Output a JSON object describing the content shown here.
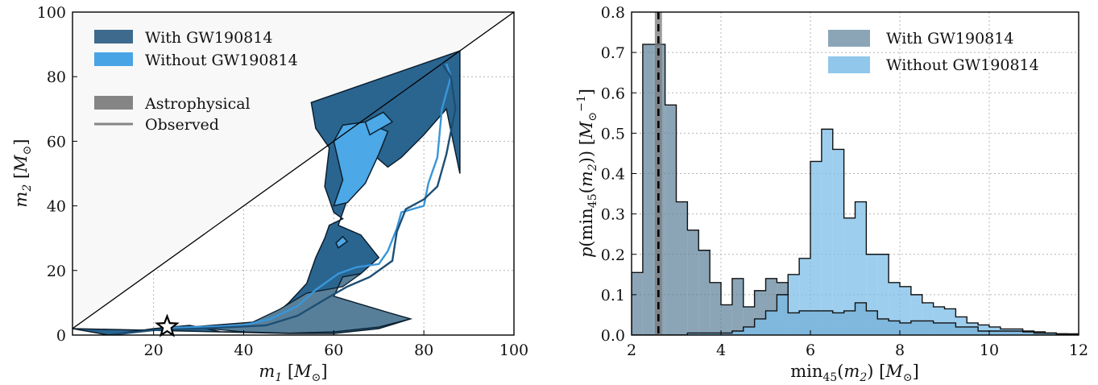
{
  "chart_data": [
    {
      "type": "area",
      "xlabel": "m_1 [M_⊙]",
      "ylabel": "m_2 [M_⊙]",
      "xlim": [
        2,
        100
      ],
      "ylim": [
        0,
        100
      ],
      "xticks": [
        "20",
        "40",
        "60",
        "80",
        "100"
      ],
      "yticks": [
        "0",
        "20",
        "40",
        "60",
        "80",
        "100"
      ],
      "grid": true,
      "legend_position": "top-left",
      "legend": {
        "with": "With GW190814",
        "without": "Without GW190814",
        "astro": "Astrophysical",
        "observed": "Observed"
      },
      "colors": {
        "with": "#225e8c",
        "without": "#3fa0e0",
        "excluded": "#f8f8f8"
      },
      "star_marker": {
        "m1": 23,
        "m2": 2.6
      },
      "series": [
        {
          "name": "With GW190814",
          "style": "filled-astrophysical",
          "polygon": [
            [
              2,
              2
            ],
            [
              10,
              0
            ],
            [
              20,
              2
            ],
            [
              28,
              3
            ],
            [
              35,
              1
            ],
            [
              40,
              1
            ],
            [
              45,
              4
            ],
            [
              50,
              10
            ],
            [
              54,
              16
            ],
            [
              56,
              24
            ],
            [
              58,
              30
            ],
            [
              59,
              34
            ],
            [
              62,
              36
            ],
            [
              60,
              38
            ],
            [
              58,
              46
            ],
            [
              59,
              58
            ],
            [
              56,
              64
            ],
            [
              55,
              72
            ],
            [
              88,
              88
            ],
            [
              88,
              50
            ],
            [
              85,
              70
            ],
            [
              80,
              62
            ],
            [
              75,
              55
            ],
            [
              72,
              52
            ],
            [
              67,
              58
            ],
            [
              64,
              51
            ],
            [
              63,
              42
            ],
            [
              61,
              34
            ],
            [
              66,
              31
            ],
            [
              70,
              24
            ],
            [
              66,
              19
            ],
            [
              62,
              18
            ],
            [
              60,
              12
            ],
            [
              72,
              7
            ],
            [
              77,
              5
            ],
            [
              70,
              2
            ],
            [
              60,
              0.5
            ],
            [
              50,
              0.5
            ]
          ]
        },
        {
          "name": "Without GW190814",
          "style": "filled-astrophysical",
          "polygon": [
            [
              60,
              40
            ],
            [
              62,
              48
            ],
            [
              60,
              60
            ],
            [
              62,
              65
            ],
            [
              67,
              66
            ],
            [
              72,
              63
            ],
            [
              70,
              56
            ],
            [
              67,
              47
            ],
            [
              63,
              41
            ]
          ]
        },
        {
          "name": "Without GW190814",
          "style": "line-observed",
          "polyline": [
            [
              22,
              2.2
            ],
            [
              30,
              2.5
            ],
            [
              40,
              3
            ],
            [
              46,
              5
            ],
            [
              52,
              9
            ],
            [
              56,
              14
            ],
            [
              61,
              19
            ],
            [
              65,
              21
            ],
            [
              70,
              22
            ],
            [
              72,
              26
            ],
            [
              74,
              33
            ],
            [
              75,
              38
            ],
            [
              80,
              40
            ],
            [
              81,
              47
            ],
            [
              83,
              55
            ],
            [
              84,
              70
            ],
            [
              86,
              80
            ],
            [
              85,
              84
            ]
          ]
        },
        {
          "name": "With GW190814",
          "style": "line-observed",
          "polyline": [
            [
              10,
              0
            ],
            [
              20,
              1.5
            ],
            [
              30,
              2
            ],
            [
              38,
              2.5
            ],
            [
              45,
              3
            ],
            [
              52,
              6
            ],
            [
              58,
              11
            ],
            [
              63,
              15
            ],
            [
              68,
              18
            ],
            [
              73,
              23
            ],
            [
              74,
              32
            ],
            [
              76,
              39
            ],
            [
              80,
              42
            ],
            [
              83,
              46
            ],
            [
              85,
              56
            ],
            [
              87,
              70
            ],
            [
              86,
              80
            ],
            [
              84,
              84
            ]
          ]
        }
      ]
    },
    {
      "type": "bar",
      "xlabel": "min_45(m_2) [M_⊙]",
      "ylabel": "p(min_45(m_2)) [M_⊙^-1]",
      "xlim": [
        2,
        12
      ],
      "ylim": [
        0,
        0.8
      ],
      "xticks": [
        "2",
        "4",
        "6",
        "8",
        "10",
        "12"
      ],
      "yticks": [
        "0.0",
        "0.1",
        "0.2",
        "0.3",
        "0.4",
        "0.5",
        "0.6",
        "0.7",
        "0.8"
      ],
      "grid": true,
      "legend_position": "top-right",
      "legend": {
        "with": "With GW190814",
        "without": "Without GW190814"
      },
      "colors": {
        "with": "#5a7f98",
        "without": "#7cbde8",
        "overlap": "#3f86b8"
      },
      "vline": {
        "x": 2.6,
        "band": [
          2.52,
          2.68
        ],
        "style": "dashed"
      },
      "bin_edges": [
        2.0,
        2.25,
        2.5,
        2.75,
        3.0,
        3.25,
        3.5,
        3.75,
        4.0,
        4.25,
        4.5,
        4.75,
        5.0,
        5.25,
        5.5,
        5.75,
        6.0,
        6.25,
        6.5,
        6.75,
        7.0,
        7.25,
        7.5,
        7.75,
        8.0,
        8.25,
        8.5,
        8.75,
        9.0,
        9.25,
        9.5,
        9.75,
        10.0,
        10.25,
        10.5,
        10.75,
        11.0,
        11.25,
        11.5,
        11.75,
        12.0
      ],
      "series": [
        {
          "name": "With GW190814",
          "values": [
            0.155,
            0.72,
            0.72,
            0.57,
            0.33,
            0.26,
            0.21,
            0.13,
            0.075,
            0.14,
            0.07,
            0.11,
            0.14,
            0.13,
            0.055,
            0.06,
            0.06,
            0.06,
            0.055,
            0.06,
            0.08,
            0.06,
            0.04,
            0.035,
            0.03,
            0.035,
            0.035,
            0.03,
            0.03,
            0.02,
            0.02,
            0.01,
            0.01,
            0.01,
            0.01,
            0.008,
            0.005,
            0.005,
            0.003,
            0.003
          ]
        },
        {
          "name": "Without GW190814",
          "values": [
            0.0,
            0.0,
            0.0,
            0.0,
            0.0,
            0.005,
            0.005,
            0.005,
            0.005,
            0.01,
            0.02,
            0.04,
            0.06,
            0.1,
            0.15,
            0.19,
            0.43,
            0.51,
            0.46,
            0.29,
            0.33,
            0.2,
            0.2,
            0.13,
            0.12,
            0.1,
            0.08,
            0.07,
            0.065,
            0.045,
            0.03,
            0.025,
            0.02,
            0.015,
            0.015,
            0.01,
            0.008,
            0.005,
            0.003,
            0.002
          ]
        }
      ]
    }
  ]
}
